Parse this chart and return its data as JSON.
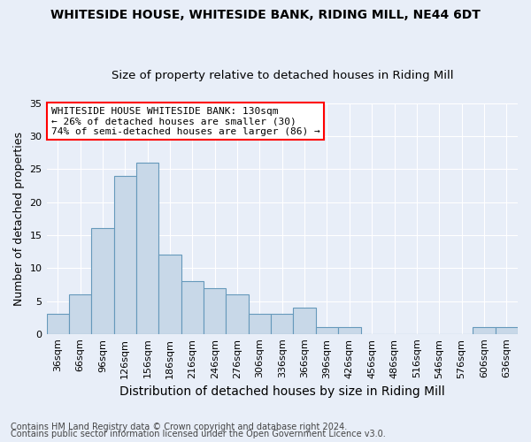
{
  "title": "WHITESIDE HOUSE, WHITESIDE BANK, RIDING MILL, NE44 6DT",
  "subtitle": "Size of property relative to detached houses in Riding Mill",
  "xlabel": "Distribution of detached houses by size in Riding Mill",
  "ylabel": "Number of detached properties",
  "bar_color": "#c8d8e8",
  "bar_edge_color": "#6699bb",
  "background_color": "#e8eef8",
  "categories": [
    "36sqm",
    "66sqm",
    "96sqm",
    "126sqm",
    "156sqm",
    "186sqm",
    "216sqm",
    "246sqm",
    "276sqm",
    "306sqm",
    "336sqm",
    "366sqm",
    "396sqm",
    "426sqm",
    "456sqm",
    "486sqm",
    "516sqm",
    "546sqm",
    "576sqm",
    "606sqm",
    "636sqm"
  ],
  "values": [
    3,
    6,
    16,
    24,
    26,
    12,
    8,
    7,
    6,
    3,
    3,
    4,
    1,
    1,
    0,
    0,
    0,
    0,
    0,
    1,
    1
  ],
  "ylim": [
    0,
    35
  ],
  "yticks": [
    0,
    5,
    10,
    15,
    20,
    25,
    30,
    35
  ],
  "annotation_line1": "WHITESIDE HOUSE WHITESIDE BANK: 130sqm",
  "annotation_line2": "← 26% of detached houses are smaller (30)",
  "annotation_line3": "74% of semi-detached houses are larger (86) →",
  "footnote1": "Contains HM Land Registry data © Crown copyright and database right 2024.",
  "footnote2": "Contains public sector information licensed under the Open Government Licence v3.0.",
  "grid_color": "#ffffff",
  "title_fontsize": 10,
  "subtitle_fontsize": 9.5,
  "xlabel_fontsize": 10,
  "ylabel_fontsize": 9,
  "tick_fontsize": 8,
  "annotation_fontsize": 8,
  "footnote_fontsize": 7
}
